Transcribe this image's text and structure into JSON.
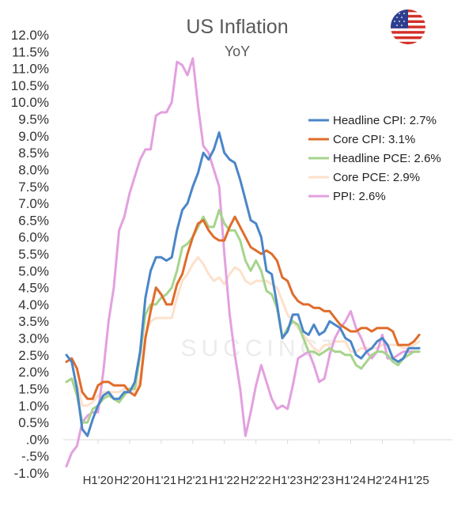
{
  "chart_data": {
    "type": "line",
    "title": "US Inflation",
    "subtitle": "YoY",
    "watermark": "SUCCINCT",
    "flag_icon": "us-flag-icon",
    "ylim": [
      -1,
      12
    ],
    "y_ticks": [
      "-1.0%",
      "-.5%",
      ".0%",
      "0.5%",
      "1.0%",
      "1.5%",
      "2.0%",
      "2.5%",
      "3.0%",
      "3.5%",
      "4.0%",
      "4.5%",
      "5.0%",
      "5.5%",
      "6.0%",
      "6.5%",
      "7.0%",
      "7.5%",
      "8.0%",
      "8.5%",
      "9.0%",
      "9.5%",
      "10.0%",
      "10.5%",
      "11.0%",
      "11.5%",
      "12.0%"
    ],
    "x_ticks": [
      "H1'20",
      "H2'20",
      "H1'21",
      "H2'21",
      "H1'22",
      "H2'22",
      "H1'23",
      "H2'23",
      "H1'24",
      "H2'24",
      "H1'25"
    ],
    "x_tick_index": [
      6,
      12,
      18,
      24,
      30,
      36,
      42,
      48,
      54,
      60,
      66
    ],
    "legend_position": "right",
    "months_count": 74,
    "series": [
      {
        "name": "Headline CPI: 2.7%",
        "color": "#4a86c8",
        "values": [
          2.5,
          2.3,
          1.5,
          0.3,
          0.1,
          0.6,
          1.0,
          1.3,
          1.4,
          1.2,
          1.2,
          1.4,
          1.4,
          1.7,
          2.6,
          4.2,
          5.0,
          5.4,
          5.4,
          5.3,
          5.4,
          6.2,
          6.8,
          7.0,
          7.5,
          7.9,
          8.5,
          8.3,
          8.6,
          9.1,
          8.5,
          8.3,
          8.2,
          7.7,
          7.1,
          6.5,
          6.4,
          6.0,
          5.0,
          4.9,
          4.0,
          3.0,
          3.2,
          3.7,
          3.7,
          3.2,
          3.1,
          3.4,
          3.1,
          3.2,
          3.5,
          3.4,
          3.3,
          3.0,
          2.9,
          2.5,
          2.4,
          2.6,
          2.7,
          2.9,
          3.0,
          2.8,
          2.4,
          2.3,
          2.4,
          2.7,
          2.7,
          2.7
        ]
      },
      {
        "name": "Core CPI: 3.1%",
        "color": "#e06c2a",
        "values": [
          2.3,
          2.4,
          2.1,
          1.4,
          1.2,
          1.2,
          1.6,
          1.7,
          1.7,
          1.6,
          1.6,
          1.6,
          1.4,
          1.3,
          1.6,
          3.0,
          3.8,
          4.5,
          4.3,
          4.0,
          4.0,
          4.6,
          4.9,
          5.5,
          6.0,
          6.4,
          6.5,
          6.2,
          6.0,
          5.9,
          5.9,
          6.3,
          6.6,
          6.3,
          6.0,
          5.7,
          5.6,
          5.5,
          5.6,
          5.5,
          5.3,
          4.8,
          4.7,
          4.3,
          4.1,
          4.0,
          4.0,
          3.9,
          3.9,
          3.8,
          3.8,
          3.6,
          3.4,
          3.3,
          3.2,
          3.2,
          3.3,
          3.3,
          3.2,
          3.3,
          3.3,
          3.3,
          3.2,
          2.8,
          2.8,
          2.8,
          2.9,
          3.1
        ]
      },
      {
        "name": "Headline PCE: 2.6%",
        "color": "#a6d48c",
        "values": [
          1.7,
          1.8,
          1.3,
          0.5,
          0.5,
          0.9,
          1.0,
          1.2,
          1.3,
          1.2,
          1.1,
          1.3,
          1.5,
          1.5,
          2.5,
          3.7,
          4.0,
          4.0,
          4.2,
          4.3,
          4.5,
          5.0,
          5.7,
          5.8,
          6.0,
          6.3,
          6.6,
          6.3,
          6.3,
          6.8,
          6.4,
          6.2,
          6.2,
          5.9,
          5.3,
          5.0,
          5.3,
          5.0,
          4.4,
          4.3,
          3.9,
          3.0,
          3.3,
          3.5,
          3.4,
          3.0,
          2.6,
          2.6,
          2.5,
          2.6,
          2.7,
          2.6,
          2.6,
          2.5,
          2.5,
          2.2,
          2.1,
          2.3,
          2.5,
          2.6,
          2.6,
          2.5,
          2.3,
          2.2,
          2.4,
          2.5,
          2.6,
          2.6
        ]
      },
      {
        "name": "Core PCE: 2.9%",
        "color": "#fde1cc",
        "values": [
          1.7,
          1.8,
          1.7,
          1.0,
          1.0,
          1.1,
          1.3,
          1.4,
          1.4,
          1.4,
          1.4,
          1.5,
          1.5,
          1.4,
          1.8,
          3.1,
          3.5,
          3.6,
          3.6,
          3.6,
          3.6,
          4.2,
          4.7,
          4.9,
          5.2,
          5.4,
          5.2,
          4.9,
          4.7,
          4.8,
          4.6,
          4.9,
          5.1,
          5.0,
          4.7,
          4.6,
          4.7,
          4.7,
          4.7,
          4.6,
          4.5,
          4.1,
          3.7,
          3.5,
          3.3,
          3.1,
          2.9,
          2.7,
          2.6,
          2.8,
          2.8,
          2.9,
          2.9,
          2.9,
          2.6,
          2.6,
          2.7,
          2.7,
          2.7,
          2.7,
          2.8,
          2.8,
          2.8,
          2.8,
          2.7,
          2.7,
          2.8,
          2.9
        ]
      },
      {
        "name": "PPI: 2.6%",
        "color": "#e3a0df",
        "values": [
          -0.8,
          -0.4,
          -0.2,
          0.5,
          0.7,
          0.8,
          0.8,
          2.0,
          3.5,
          4.5,
          6.2,
          6.6,
          7.3,
          7.8,
          8.3,
          8.6,
          8.6,
          9.6,
          9.7,
          9.7,
          10.0,
          11.2,
          11.1,
          10.8,
          11.3,
          9.9,
          8.7,
          8.5,
          8.0,
          7.5,
          5.5,
          3.7,
          2.5,
          1.5,
          0.1,
          0.8,
          1.6,
          2.2,
          1.7,
          1.2,
          0.9,
          1.0,
          0.9,
          1.6,
          2.4,
          2.5,
          2.6,
          2.2,
          1.7,
          1.8,
          2.5,
          3.0,
          3.3,
          3.5,
          3.8,
          3.3,
          3.0,
          2.6,
          2.4,
          2.6,
          3.1,
          2.4,
          2.4,
          2.5,
          2.6,
          2.6,
          2.6,
          2.6
        ]
      }
    ]
  }
}
